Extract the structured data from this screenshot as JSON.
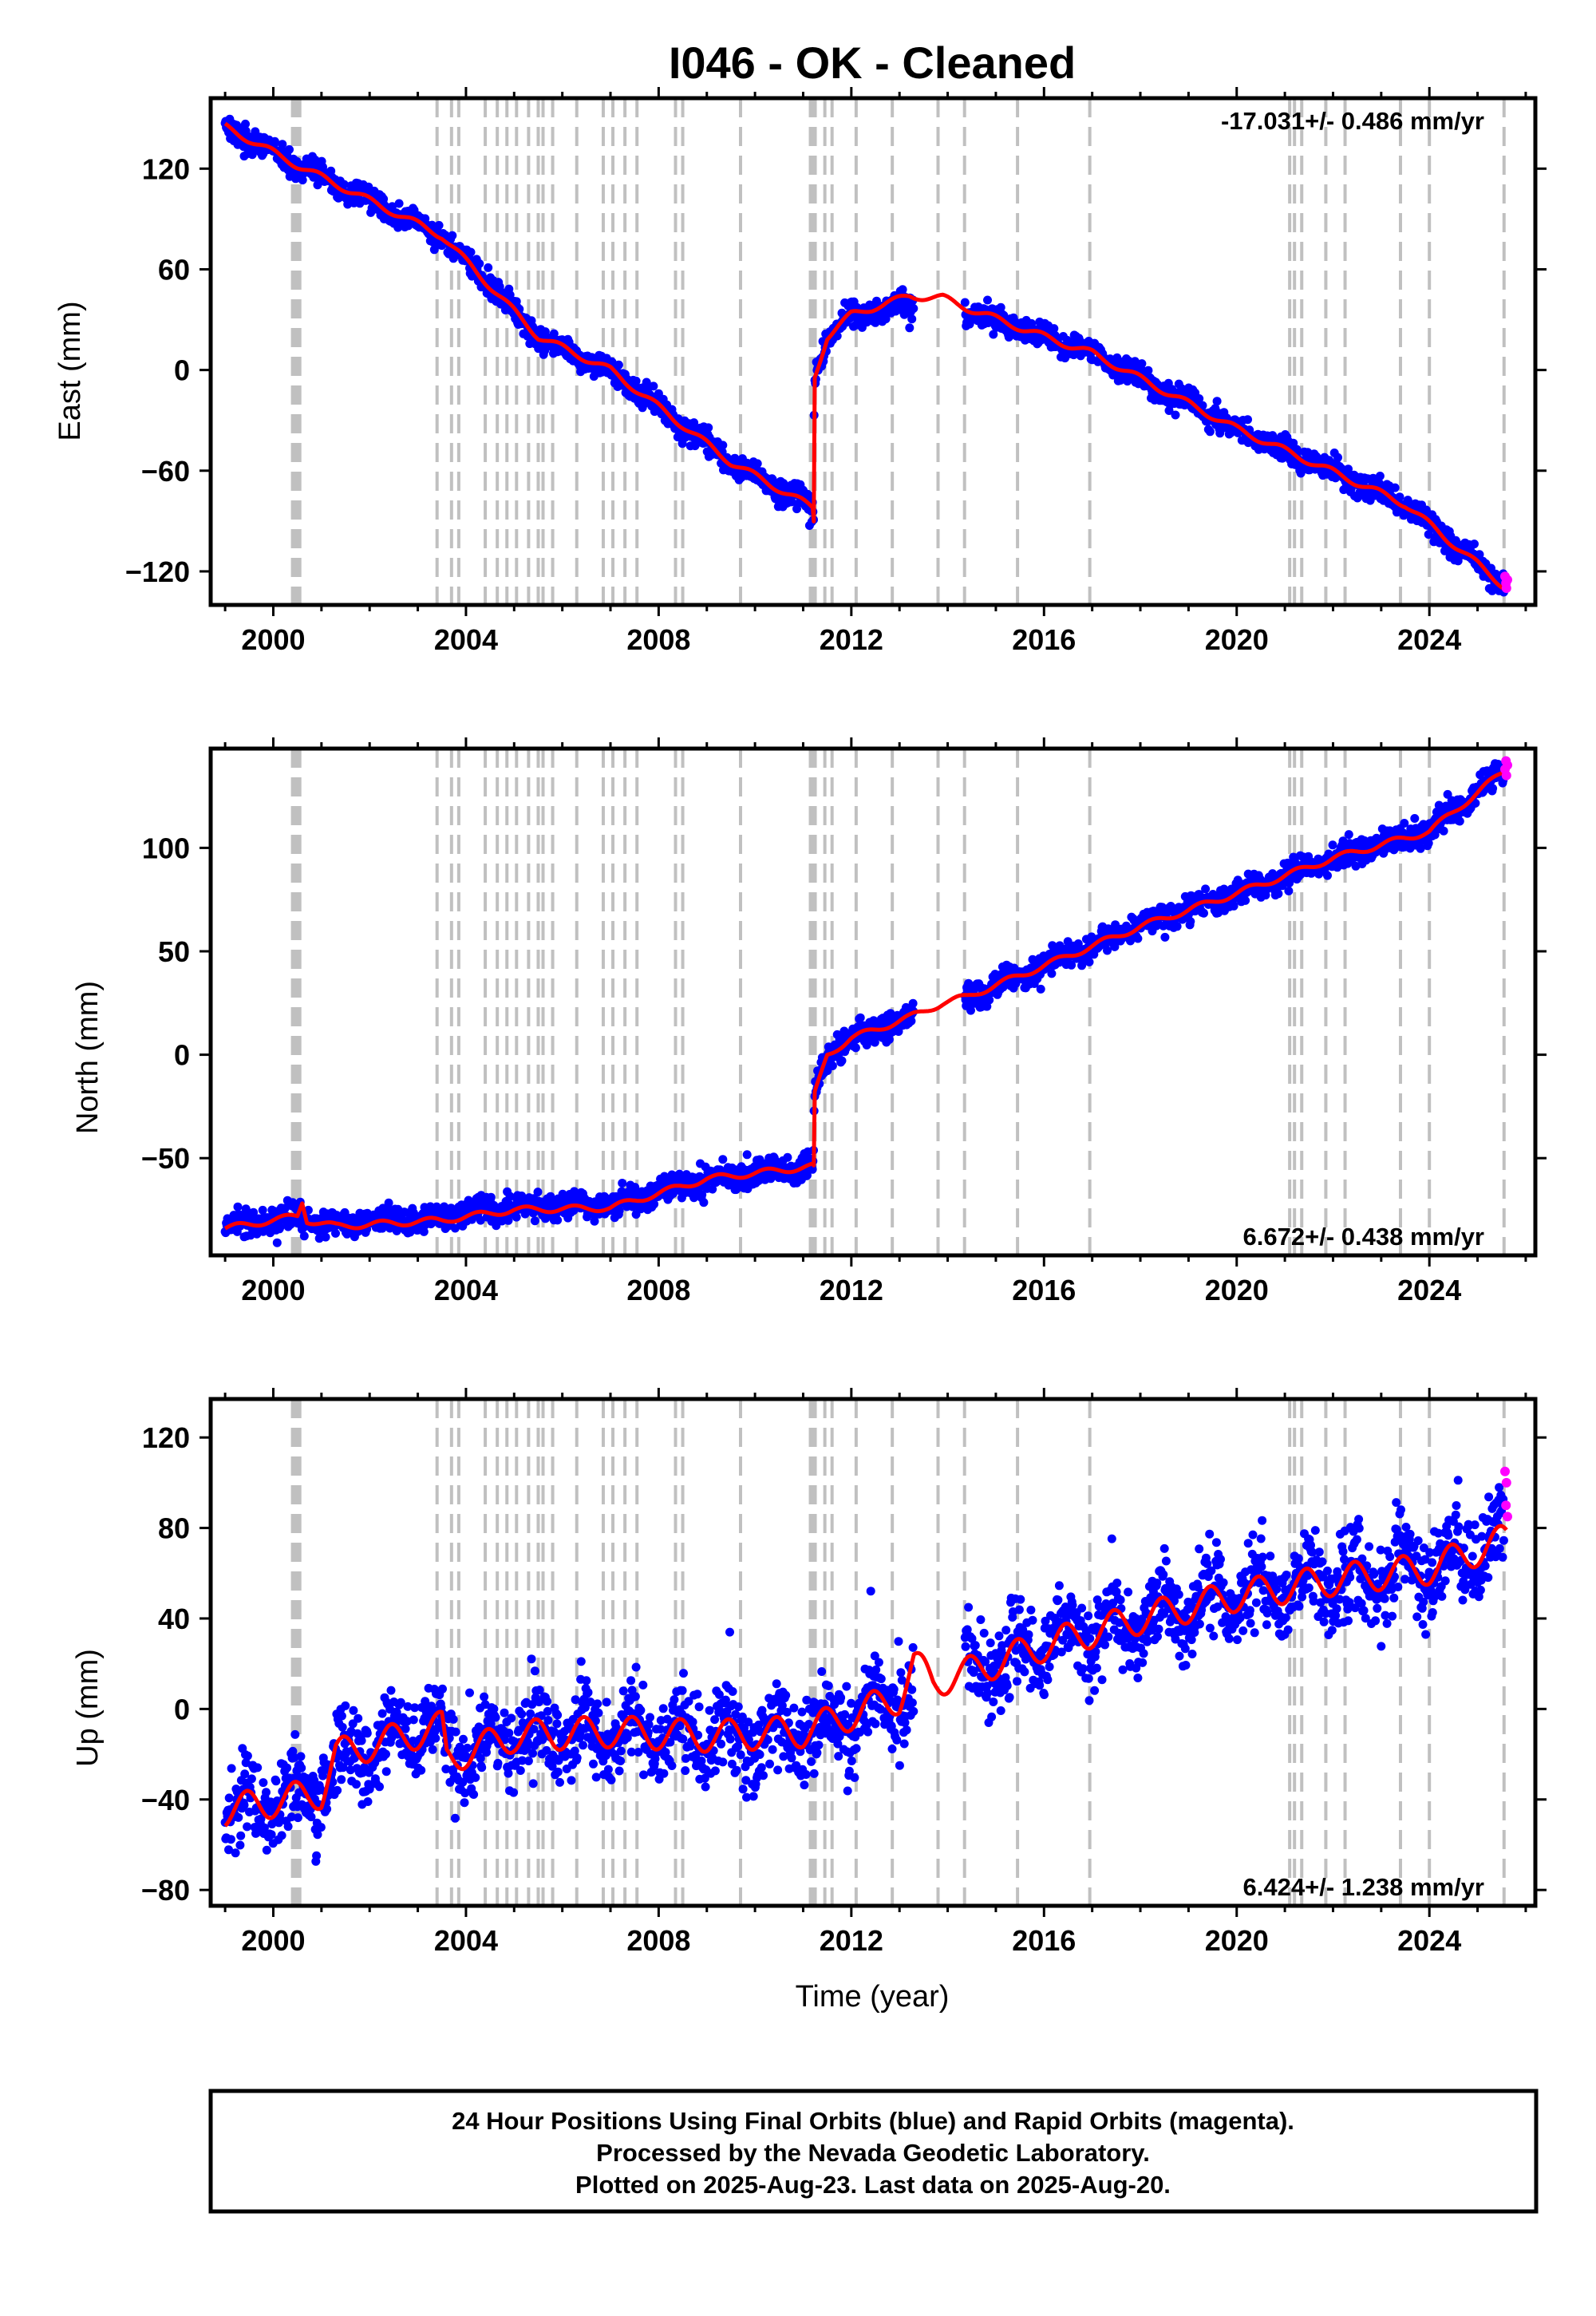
{
  "title": "I046  - OK - Cleaned",
  "xlabel": "Time (year)",
  "footer": {
    "line1": "24 Hour Positions Using Final Orbits (blue) and Rapid Orbits (magenta).",
    "line2": "Processed by the Nevada Geodetic Laboratory.",
    "line3": "Plotted on 2025-Aug-23. Last data on 2025-Aug-20."
  },
  "colors": {
    "final": "#0000ff",
    "rapid": "#ff00ff",
    "model": "#ff0000",
    "events": "#c0c0c0",
    "axes": "#000000"
  },
  "chart_data": [
    {
      "type": "scatter",
      "component": "east",
      "ylabel": "East (mm)",
      "rate_text": "-17.031+/- 0.486 mm/yr",
      "rate_position": "top-right",
      "xlim": [
        1998.7,
        2026.2
      ],
      "ylim": [
        -140,
        162
      ],
      "xticks": [
        2000,
        2004,
        2008,
        2012,
        2016,
        2020,
        2024
      ],
      "yticks": [
        120,
        60,
        0,
        -60,
        -120
      ],
      "noise_mm": 3.5,
      "grid": false,
      "series": [
        {
          "role": "final",
          "trend": [
            [
              1999.0,
              145
            ],
            [
              2000.5,
              122
            ],
            [
              2003.5,
              80
            ],
            [
              2005.5,
              20
            ],
            [
              2007.0,
              0
            ],
            [
              2009.5,
              -55
            ],
            [
              2011.2,
              -82
            ],
            [
              2011.22,
              -95
            ],
            [
              2011.23,
              -5
            ],
            [
              2011.5,
              20
            ],
            [
              2012.0,
              33
            ],
            [
              2013.0,
              38
            ],
            [
              2014.4,
              35
            ],
            [
              2016.0,
              20
            ],
            [
              2017.0,
              10
            ],
            [
              2020.0,
              -35
            ],
            [
              2023.5,
              -80
            ],
            [
              2025.6,
              -130
            ]
          ]
        },
        {
          "role": "model",
          "trend": [
            [
              1999.0,
              145
            ],
            [
              2000.5,
              122
            ],
            [
              2003.5,
              80
            ],
            [
              2005.5,
              20
            ],
            [
              2007.0,
              0
            ],
            [
              2009.5,
              -55
            ],
            [
              2011.2,
              -82
            ],
            [
              2011.22,
              -90
            ],
            [
              2011.23,
              -5
            ],
            [
              2011.5,
              20
            ],
            [
              2012.0,
              33
            ],
            [
              2013.2,
              44
            ],
            [
              2013.9,
              43
            ],
            [
              2014.4,
              37
            ],
            [
              2016.0,
              20
            ],
            [
              2017.0,
              10
            ],
            [
              2020.0,
              -35
            ],
            [
              2023.5,
              -80
            ],
            [
              2025.6,
              -130
            ]
          ]
        },
        {
          "role": "rapid",
          "points": [
            [
              2025.57,
              -123
            ],
            [
              2025.59,
              -127
            ],
            [
              2025.6,
              -130
            ],
            [
              2025.62,
              -125
            ]
          ]
        }
      ],
      "events": [
        2000.4,
        2000.45,
        2000.5,
        2000.55,
        2003.4,
        2003.7,
        2003.85,
        2004.4,
        2004.65,
        2004.85,
        2005.05,
        2005.3,
        2005.5,
        2005.6,
        2005.8,
        2006.3,
        2006.85,
        2007.05,
        2007.3,
        2007.55,
        2008.35,
        2008.5,
        2009.7,
        2011.15,
        2011.2,
        2011.25,
        2011.45,
        2011.6,
        2012.1,
        2012.85,
        2013.8,
        2014.35,
        2015.45,
        2016.95,
        2021.1,
        2021.2,
        2021.35,
        2021.85,
        2022.25,
        2023.4,
        2024.0,
        2025.55
      ]
    },
    {
      "type": "scatter",
      "component": "north",
      "ylabel": "North (mm)",
      "rate_text": "6.672+/- 0.438 mm/yr",
      "rate_position": "bottom-right",
      "xlim": [
        1998.7,
        2026.2
      ],
      "ylim": [
        -97,
        148
      ],
      "xticks": [
        2000,
        2004,
        2008,
        2012,
        2016,
        2020,
        2024
      ],
      "yticks": [
        100,
        50,
        0,
        -50
      ],
      "noise_mm": 3,
      "grid": false,
      "series": [
        {
          "role": "final",
          "trend": [
            [
              1999.0,
              -83
            ],
            [
              2000.5,
              -78
            ],
            [
              2001.0,
              -82
            ],
            [
              2003.5,
              -78
            ],
            [
              2005.0,
              -73
            ],
            [
              2007.0,
              -73
            ],
            [
              2009.0,
              -60
            ],
            [
              2011.2,
              -54
            ],
            [
              2011.22,
              -55
            ],
            [
              2011.23,
              -20
            ],
            [
              2011.5,
              0
            ],
            [
              2012.0,
              8
            ],
            [
              2013.2,
              18
            ],
            [
              2014.4,
              27
            ],
            [
              2016.0,
              43
            ],
            [
              2018.0,
              62
            ],
            [
              2020.0,
              78
            ],
            [
              2022.0,
              95
            ],
            [
              2024.0,
              108
            ],
            [
              2025.6,
              138
            ]
          ]
        },
        {
          "role": "model",
          "trend": [
            [
              1999.0,
              -84
            ],
            [
              2000.5,
              -78
            ],
            [
              2000.6,
              -71
            ],
            [
              2000.7,
              -80
            ],
            [
              2001.3,
              -83
            ],
            [
              2003.5,
              -80
            ],
            [
              2005.0,
              -75
            ],
            [
              2007.0,
              -74
            ],
            [
              2009.0,
              -60
            ],
            [
              2011.2,
              -54
            ],
            [
              2011.22,
              -55
            ],
            [
              2011.23,
              -20
            ],
            [
              2011.5,
              0
            ],
            [
              2012.0,
              8
            ],
            [
              2013.2,
              18
            ],
            [
              2013.9,
              25
            ],
            [
              2014.4,
              28
            ],
            [
              2016.0,
              43
            ],
            [
              2018.0,
              62
            ],
            [
              2020.0,
              78
            ],
            [
              2022.0,
              95
            ],
            [
              2024.0,
              108
            ],
            [
              2025.6,
              138
            ]
          ]
        },
        {
          "role": "rapid",
          "points": [
            [
              2025.57,
              138
            ],
            [
              2025.59,
              142
            ],
            [
              2025.6,
              135
            ],
            [
              2025.62,
              140
            ]
          ]
        }
      ],
      "events": [
        2000.4,
        2000.45,
        2000.5,
        2000.55,
        2003.4,
        2003.7,
        2003.85,
        2004.4,
        2004.65,
        2004.85,
        2005.05,
        2005.3,
        2005.5,
        2005.6,
        2005.8,
        2006.3,
        2006.85,
        2007.05,
        2007.3,
        2007.55,
        2008.35,
        2008.5,
        2009.7,
        2011.15,
        2011.2,
        2011.25,
        2011.45,
        2011.6,
        2012.1,
        2012.85,
        2013.8,
        2014.35,
        2015.45,
        2016.95,
        2021.1,
        2021.2,
        2021.35,
        2021.85,
        2022.25,
        2023.4,
        2024.0,
        2025.55
      ]
    },
    {
      "type": "scatter",
      "component": "up",
      "ylabel": "Up (mm)",
      "rate_text": "6.424+/- 1.238 mm/yr",
      "rate_position": "bottom-right",
      "xlim": [
        1998.7,
        2026.2
      ],
      "ylim": [
        -87,
        137
      ],
      "xticks": [
        2000,
        2004,
        2008,
        2012,
        2016,
        2020,
        2024
      ],
      "yticks": [
        120,
        80,
        40,
        0,
        -40,
        -80
      ],
      "noise_mm": 9,
      "grid": false,
      "series": [
        {
          "role": "final",
          "trend": [
            [
              1999.0,
              -45
            ],
            [
              2001.0,
              -37
            ],
            [
              2001.3,
              -20
            ],
            [
              2003.5,
              -8
            ],
            [
              2003.6,
              -22
            ],
            [
              2005.0,
              -12
            ],
            [
              2007.0,
              -10
            ],
            [
              2009.0,
              -12
            ],
            [
              2011.0,
              -10
            ],
            [
              2013.0,
              5
            ],
            [
              2014.4,
              16
            ],
            [
              2016.0,
              28
            ],
            [
              2018.0,
              40
            ],
            [
              2020.0,
              50
            ],
            [
              2022.0,
              57
            ],
            [
              2024.0,
              62
            ],
            [
              2025.6,
              75
            ]
          ]
        },
        {
          "role": "model",
          "trend": [
            [
              1999.0,
              -45
            ],
            [
              2001.0,
              -37
            ],
            [
              2001.3,
              -20
            ],
            [
              2003.5,
              -8
            ],
            [
              2003.6,
              -22
            ],
            [
              2005.0,
              -12
            ],
            [
              2007.0,
              -10
            ],
            [
              2009.0,
              -12
            ],
            [
              2011.0,
              -10
            ],
            [
              2013.0,
              5
            ],
            [
              2013.3,
              20
            ],
            [
              2013.7,
              12
            ],
            [
              2014.4,
              16
            ],
            [
              2016.0,
              28
            ],
            [
              2018.0,
              40
            ],
            [
              2020.0,
              50
            ],
            [
              2022.0,
              57
            ],
            [
              2024.0,
              62
            ],
            [
              2025.6,
              75
            ]
          ]
        },
        {
          "role": "rapid",
          "points": [
            [
              2025.57,
              105
            ],
            [
              2025.59,
              90
            ],
            [
              2025.6,
              100
            ],
            [
              2025.62,
              85
            ]
          ]
        }
      ],
      "events": [
        2000.4,
        2000.45,
        2000.5,
        2000.55,
        2003.4,
        2003.7,
        2003.85,
        2004.4,
        2004.65,
        2004.85,
        2005.05,
        2005.3,
        2005.5,
        2005.6,
        2005.8,
        2006.3,
        2006.85,
        2007.05,
        2007.3,
        2007.55,
        2008.35,
        2008.5,
        2009.7,
        2011.15,
        2011.2,
        2011.25,
        2011.45,
        2011.6,
        2012.1,
        2012.85,
        2013.8,
        2014.35,
        2015.45,
        2016.95,
        2021.1,
        2021.2,
        2021.35,
        2021.85,
        2022.25,
        2023.4,
        2024.0,
        2025.55
      ]
    }
  ]
}
